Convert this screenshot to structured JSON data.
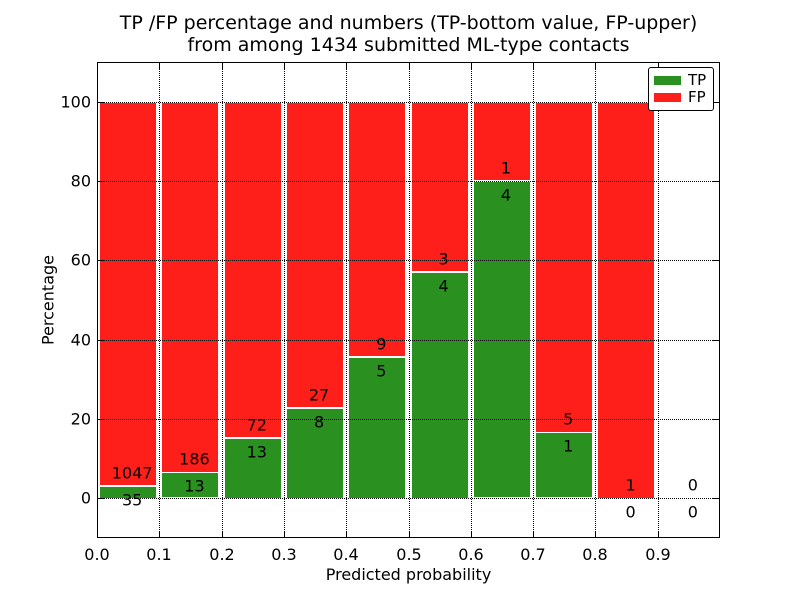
{
  "title": {
    "line1": "TP /FP percentage and numbers (TP-bottom value, FP-upper)",
    "line2": "from among 1434 submitted ML-type contacts"
  },
  "axes": {
    "xlabel": "Predicted probability",
    "ylabel": "Percentage"
  },
  "legend": {
    "position": "upper-right",
    "items": [
      {
        "label": "TP",
        "color": "#2a9121"
      },
      {
        "label": "FP",
        "color": "#ff1f1a"
      }
    ]
  },
  "chart_data": {
    "type": "bar",
    "subtype": "stacked-normalized-percentage",
    "title": "TP /FP percentage and numbers (TP-bottom value, FP-upper) from among 1434 submitted ML-type contacts",
    "xlabel": "Predicted probability",
    "ylabel": "Percentage",
    "xlim": [
      0.0,
      1.0
    ],
    "ylim": [
      -10,
      110
    ],
    "grid": true,
    "grid_style": "dotted",
    "legend_position": "upper-right",
    "total_contacts": 1434,
    "bin_width": 0.1,
    "categories": [
      "0.0-0.1",
      "0.1-0.2",
      "0.2-0.3",
      "0.3-0.4",
      "0.4-0.5",
      "0.5-0.6",
      "0.6-0.7",
      "0.7-0.8",
      "0.8-0.9",
      "0.9-1.0"
    ],
    "bin_starts": [
      0.0,
      0.1,
      0.2,
      0.3,
      0.4,
      0.5,
      0.6,
      0.7,
      0.8,
      0.9
    ],
    "series": [
      {
        "name": "TP",
        "color": "#2a9121",
        "values": [
          35,
          13,
          13,
          8,
          5,
          4,
          4,
          1,
          0,
          0
        ]
      },
      {
        "name": "FP",
        "color": "#ff1f1a",
        "values": [
          1047,
          186,
          72,
          27,
          9,
          3,
          1,
          5,
          1,
          0
        ]
      }
    ],
    "tp_percentages": [
      3.2,
      6.5,
      15.3,
      22.9,
      35.7,
      57.1,
      80.0,
      16.7,
      0.0,
      null
    ],
    "xtick_values": [
      0.0,
      0.1,
      0.2,
      0.3,
      0.4,
      0.5,
      0.6,
      0.7,
      0.8,
      0.9
    ],
    "xtick_labels": [
      "0.0",
      "0.1",
      "0.2",
      "0.3",
      "0.4",
      "0.5",
      "0.6",
      "0.7",
      "0.8",
      "0.9"
    ],
    "ytick_values": [
      0,
      20,
      40,
      60,
      80,
      100
    ],
    "ytick_labels": [
      "0",
      "20",
      "40",
      "60",
      "80",
      "100"
    ]
  }
}
